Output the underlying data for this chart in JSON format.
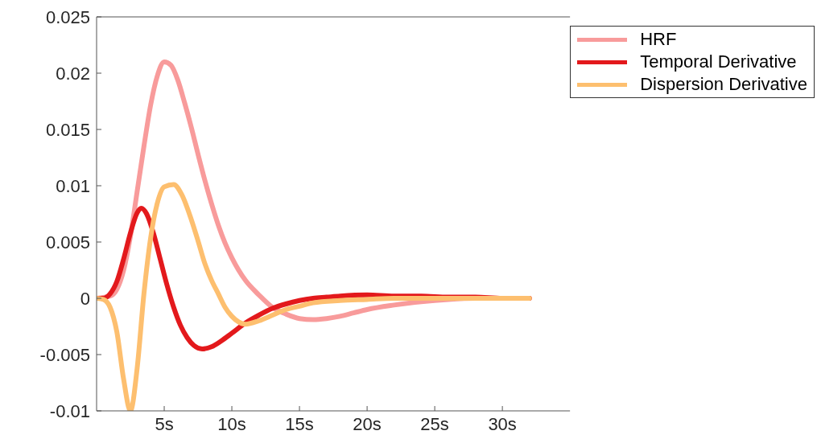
{
  "chart_data": {
    "type": "line",
    "xlim": [
      0,
      35
    ],
    "ylim": [
      -0.01,
      0.025
    ],
    "xticks": [
      {
        "value": 5,
        "label": "5s"
      },
      {
        "value": 10,
        "label": "10s"
      },
      {
        "value": 15,
        "label": "15s"
      },
      {
        "value": 20,
        "label": "20s"
      },
      {
        "value": 25,
        "label": "25s"
      },
      {
        "value": 30,
        "label": "30s"
      }
    ],
    "yticks": [
      -0.01,
      -0.005,
      0,
      0.005,
      0.01,
      0.015,
      0.02,
      0.025
    ],
    "grid": false,
    "legend": "top right",
    "marker": "none",
    "line_style": "solid",
    "series": [
      {
        "name": "HRF",
        "color": "#f89b9b",
        "x": [
          0,
          1,
          1.5,
          2,
          2.5,
          3,
          3.5,
          4,
          4.5,
          5,
          5.5,
          6,
          6.5,
          7,
          7.5,
          8,
          8.5,
          9,
          9.5,
          10,
          11,
          12,
          13,
          14,
          15,
          16,
          17,
          18,
          19,
          20,
          22,
          24,
          26,
          28,
          32
        ],
        "values": [
          0,
          0.0002,
          0.0008,
          0.0025,
          0.0055,
          0.0095,
          0.0135,
          0.0172,
          0.0198,
          0.021,
          0.0207,
          0.0194,
          0.0174,
          0.0152,
          0.0128,
          0.0105,
          0.0084,
          0.0065,
          0.0049,
          0.0036,
          0.0016,
          0.0003,
          -0.0008,
          -0.0014,
          -0.0018,
          -0.0019,
          -0.0018,
          -0.0016,
          -0.0013,
          -0.001,
          -0.0006,
          -0.0003,
          -0.0001,
          0,
          0
        ]
      },
      {
        "name": "Temporal Derivative",
        "color": "#e3191c",
        "x": [
          0,
          0.5,
          1,
          1.5,
          2,
          2.5,
          3,
          3.3,
          3.7,
          4.2,
          4.7,
          5.2,
          5.7,
          6.2,
          6.7,
          7.2,
          7.8,
          8.5,
          9.2,
          10,
          11,
          12,
          13,
          14,
          15,
          16,
          17,
          18,
          20,
          22,
          24,
          26,
          28,
          30,
          32
        ],
        "values": [
          0,
          0,
          0.0004,
          0.0015,
          0.0035,
          0.0058,
          0.0076,
          0.008,
          0.0075,
          0.0058,
          0.0035,
          0.0012,
          -0.0008,
          -0.0024,
          -0.0035,
          -0.0042,
          -0.0045,
          -0.0043,
          -0.0038,
          -0.0031,
          -0.0022,
          -0.0015,
          -0.0009,
          -0.0005,
          -0.0002,
          0,
          0.0001,
          0.0002,
          0.0003,
          0.0002,
          0.0002,
          0.0001,
          0.0001,
          0,
          0
        ]
      },
      {
        "name": "Dispersion Derivative",
        "color": "#fdbf6f",
        "x": [
          0,
          0.5,
          1,
          1.5,
          2,
          2.5,
          3,
          3.5,
          4,
          4.5,
          5,
          5.7,
          6.3,
          7,
          7.5,
          8,
          8.5,
          9,
          9.5,
          10,
          10.5,
          11,
          12,
          13,
          14,
          15,
          16,
          18,
          20,
          22,
          32
        ],
        "values": [
          0,
          -0.0001,
          -0.0008,
          -0.003,
          -0.0072,
          -0.01,
          -0.0062,
          0.0004,
          0.0054,
          0.0085,
          0.0099,
          0.0101,
          0.0092,
          0.007,
          0.0051,
          0.0031,
          0.0016,
          0.0004,
          -0.0008,
          -0.0016,
          -0.0021,
          -0.0023,
          -0.002,
          -0.0015,
          -0.001,
          -0.0007,
          -0.0004,
          -0.0002,
          -0.0001,
          0,
          0
        ]
      }
    ]
  }
}
